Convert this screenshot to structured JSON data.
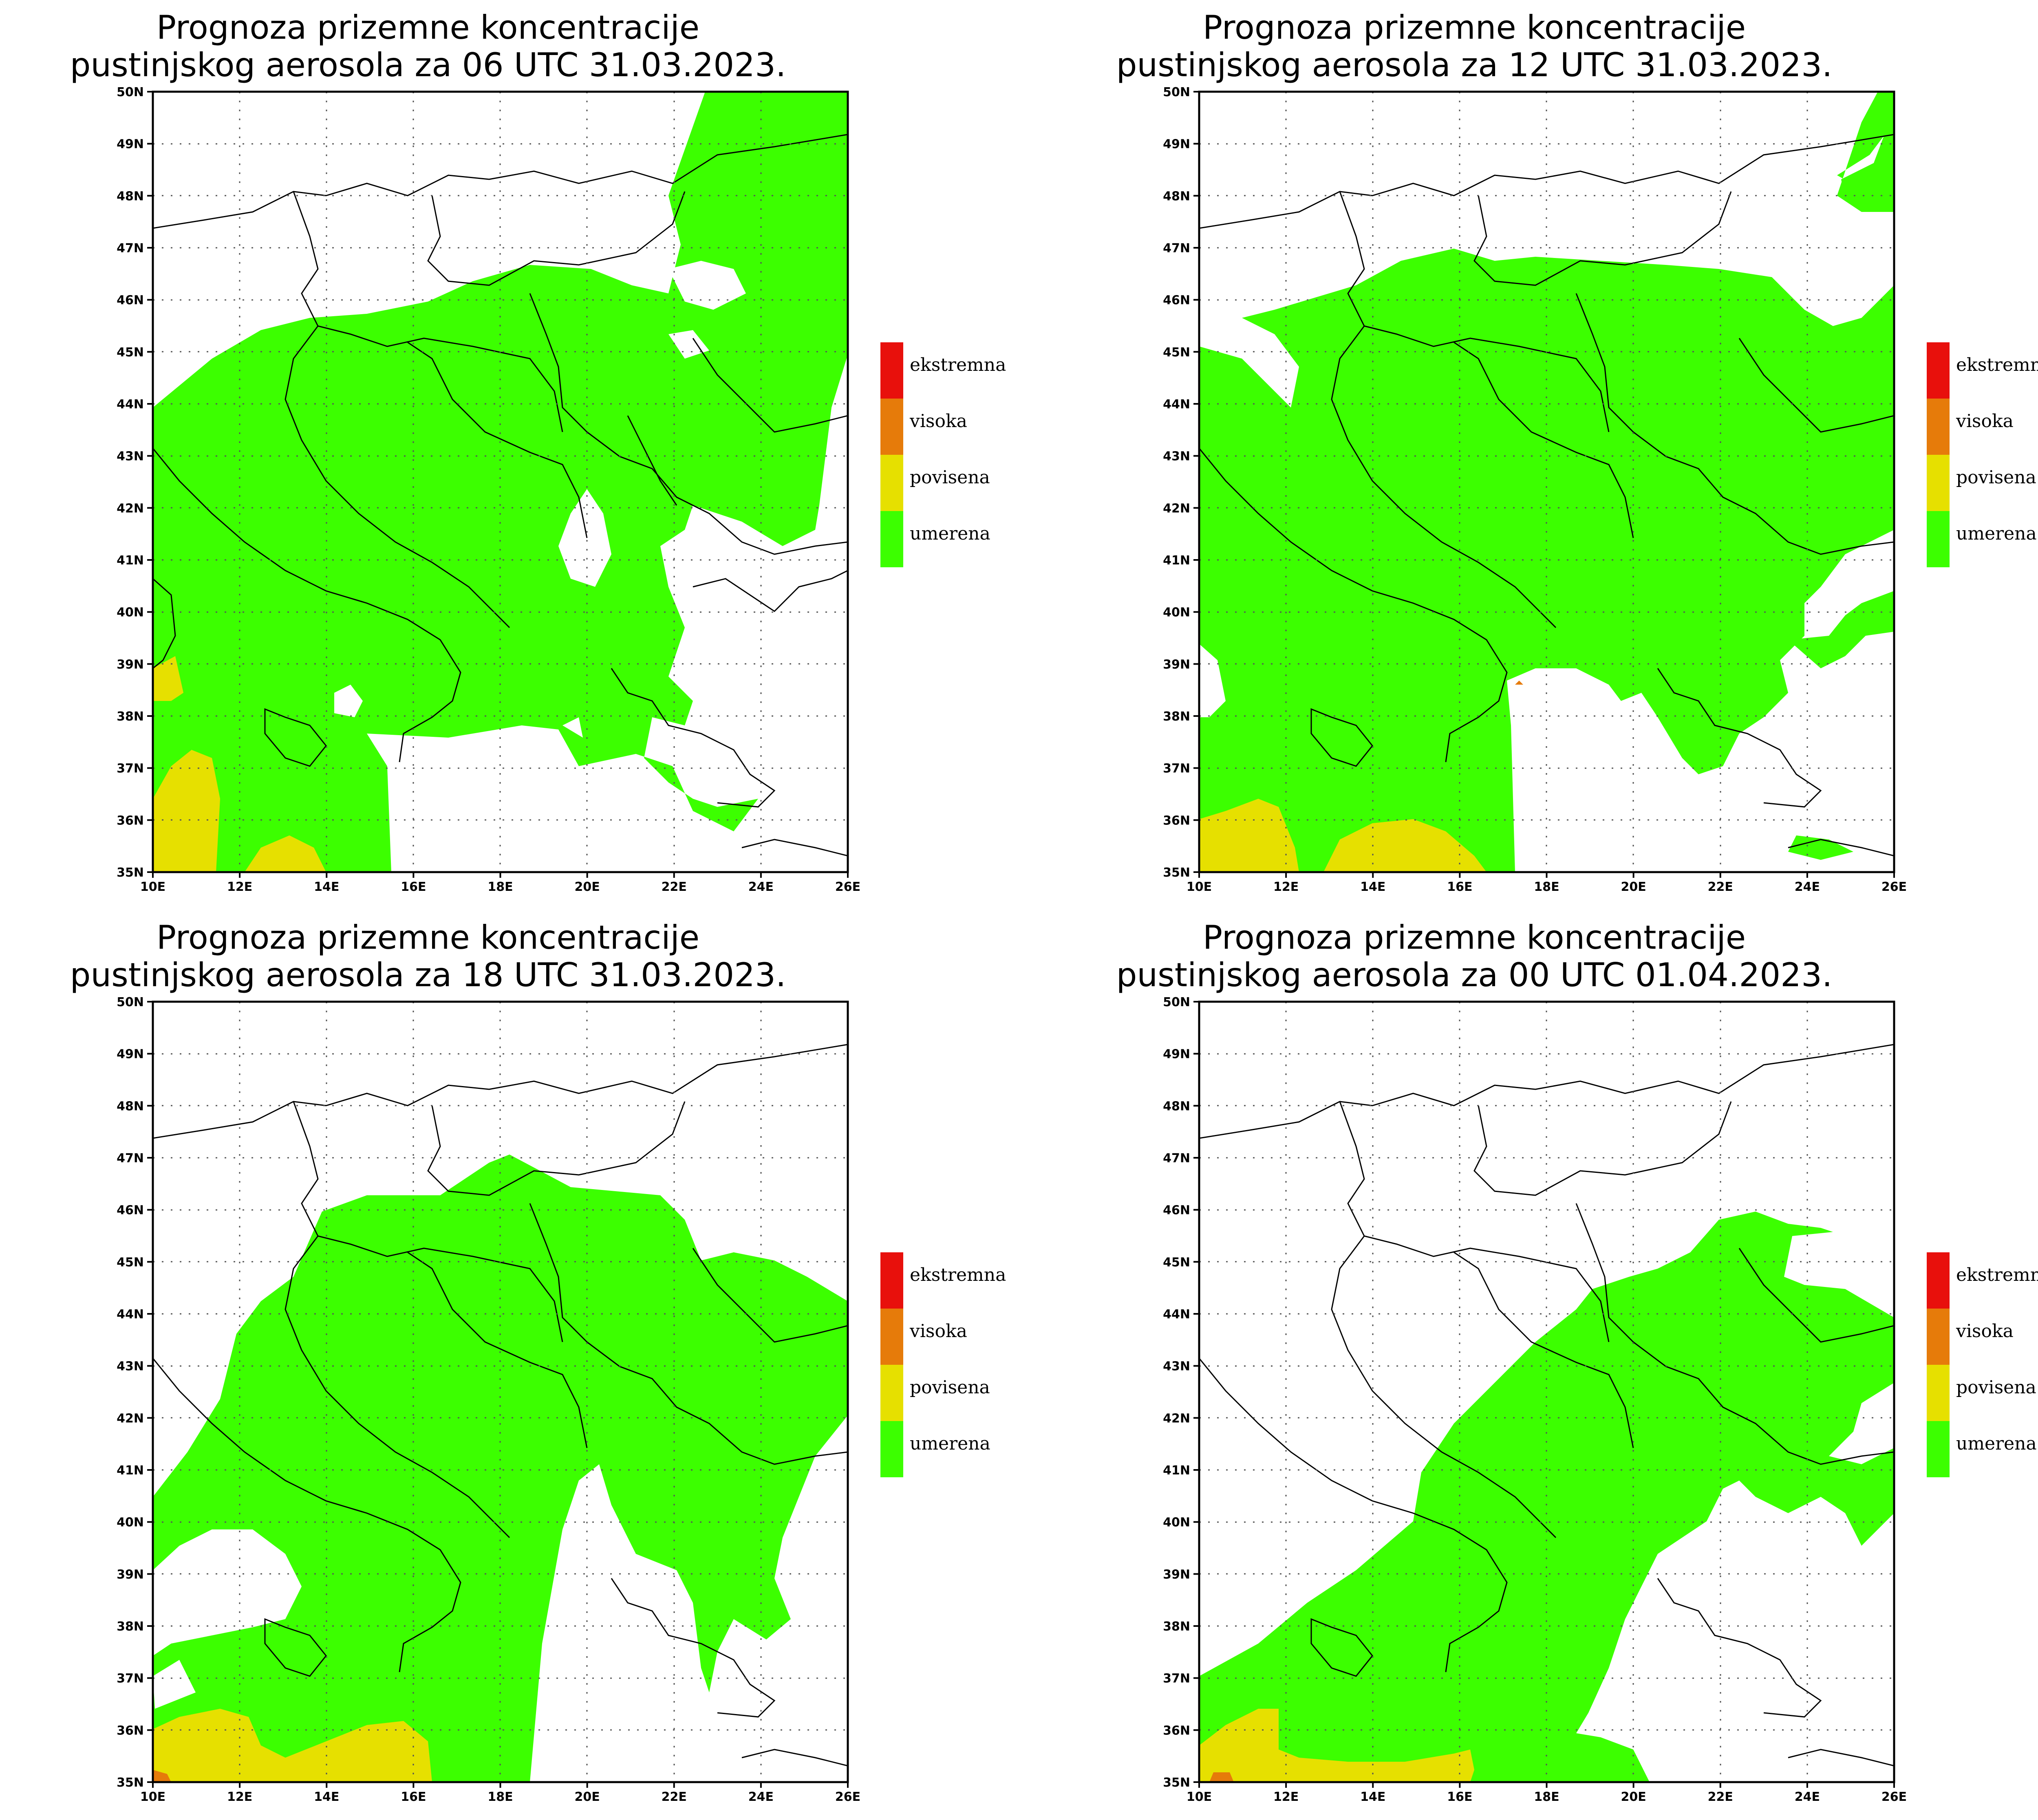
{
  "panels": [
    {
      "title_line1": "Prognoza prizemne koncentracije",
      "title_line2": "pustinjskog aerosola za 06 UTC 31.03.2023."
    },
    {
      "title_line1": "Prognoza prizemne koncentracije",
      "title_line2": "pustinjskog aerosola za 12 UTC 31.03.2023."
    },
    {
      "title_line1": "Prognoza prizemne koncentracije",
      "title_line2": "pustinjskog aerosola za 18 UTC 31.03.2023."
    },
    {
      "title_line1": "Prognoza prizemne koncentracije",
      "title_line2": "pustinjskog aerosola za 00 UTC 01.04.2023."
    }
  ],
  "map": {
    "lon_range": [
      10,
      26
    ],
    "lat_range": [
      35,
      50
    ],
    "lon_ticks": [
      "10E",
      "12E",
      "14E",
      "16E",
      "18E",
      "20E",
      "22E",
      "24E",
      "26E"
    ],
    "lat_ticks": [
      "35N",
      "36N",
      "37N",
      "38N",
      "39N",
      "40N",
      "41N",
      "42N",
      "43N",
      "44N",
      "45N",
      "46N",
      "47N",
      "48N",
      "49N",
      "50N"
    ],
    "grid": "dotted"
  },
  "legend": [
    {
      "label": "ekstremna",
      "color": "#e8100c"
    },
    {
      "label": "visoka",
      "color": "#e67b0a"
    },
    {
      "label": "povisena",
      "color": "#e6e000"
    },
    {
      "label": "umerena",
      "color": "#3cff00"
    }
  ]
}
